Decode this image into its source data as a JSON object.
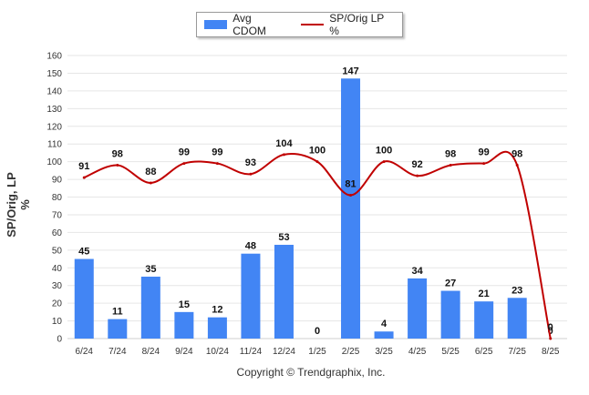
{
  "legend": {
    "bar_label": "Avg CDOM",
    "line_label": "SP/Orig LP %"
  },
  "footer": {
    "copyright": "Copyright © Trendgraphix, Inc."
  },
  "colors": {
    "bar": "#4285f4",
    "line": "#c00000",
    "grid": "#e6e6e6"
  },
  "chart_data": {
    "type": "bar",
    "ylabel": "SP/Orig, LP %",
    "ylim": [
      0,
      160
    ],
    "yticks": [
      0,
      10,
      20,
      30,
      40,
      50,
      60,
      70,
      80,
      90,
      100,
      110,
      120,
      130,
      140,
      150,
      160
    ],
    "grid": true,
    "legend_position": "top-center",
    "categories": [
      "6/24",
      "7/24",
      "8/24",
      "9/24",
      "10/24",
      "11/24",
      "12/24",
      "1/25",
      "2/25",
      "3/25",
      "4/25",
      "5/25",
      "6/25",
      "7/25",
      "8/25"
    ],
    "series": [
      {
        "name": "Avg CDOM",
        "type": "bar",
        "values": [
          45,
          11,
          35,
          15,
          12,
          48,
          53,
          0,
          147,
          4,
          34,
          27,
          21,
          23,
          0
        ]
      },
      {
        "name": "SP/Orig LP %",
        "type": "line",
        "values": [
          91,
          98,
          88,
          99,
          99,
          93,
          104,
          100,
          81,
          100,
          92,
          98,
          99,
          98,
          0
        ]
      }
    ]
  }
}
